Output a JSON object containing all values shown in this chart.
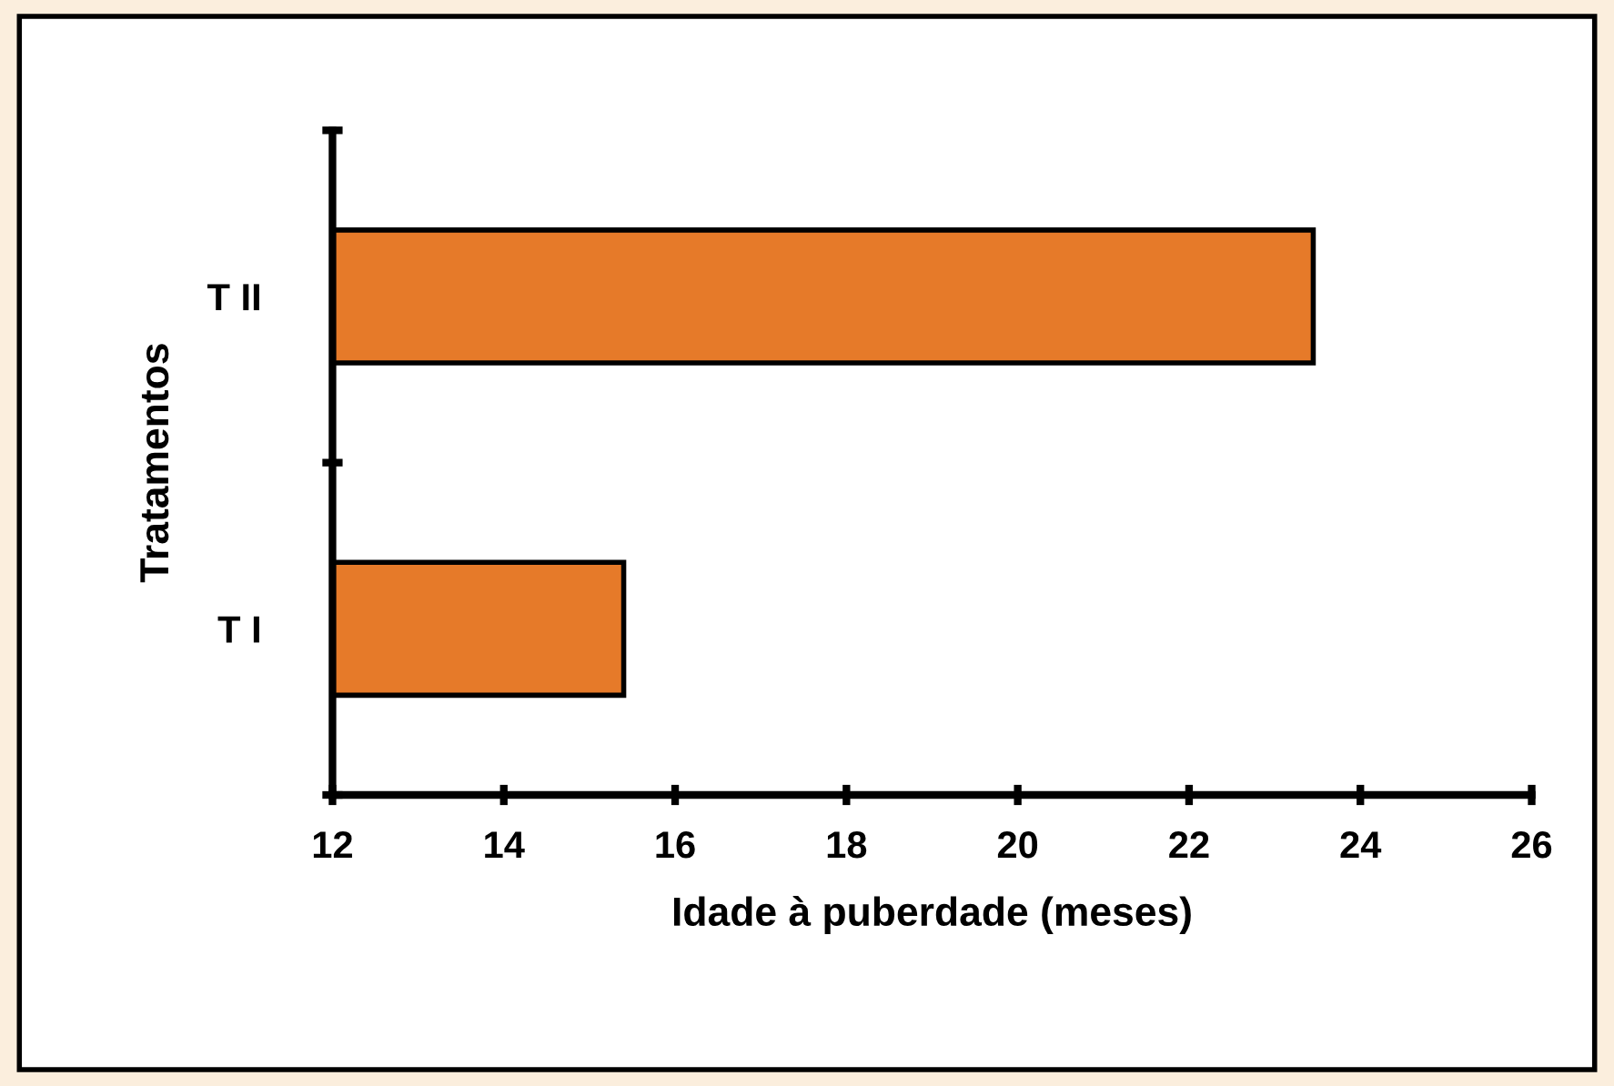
{
  "chart_data": {
    "type": "bar",
    "orientation": "horizontal",
    "categories": [
      "T II",
      "T I"
    ],
    "values": [
      23.45,
      15.4
    ],
    "color": "#e67a29",
    "xlabel": "Idade à puberdade (meses)",
    "ylabel": "Tratamentos",
    "xlim": [
      12,
      26
    ],
    "xticks": [
      12,
      14,
      16,
      18,
      20,
      22,
      24,
      26
    ]
  }
}
